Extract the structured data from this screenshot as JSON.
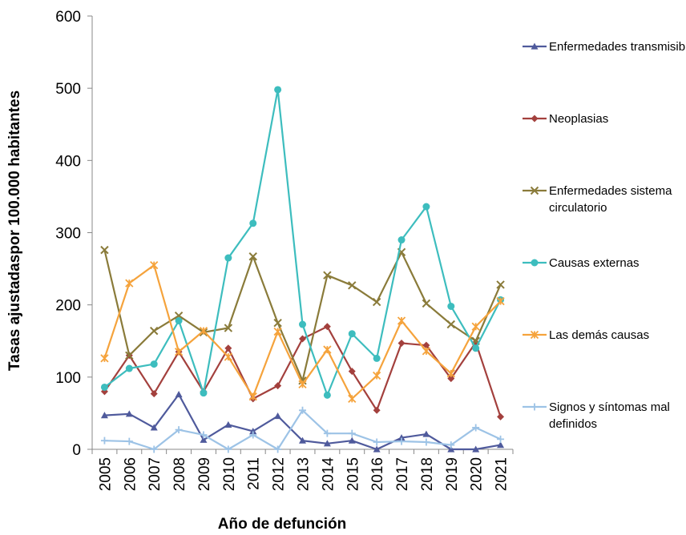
{
  "chart_data": {
    "type": "line",
    "xlabel": "Año de defunción",
    "ylabel": "Tasas ajustadaspor 100.000 habitantes",
    "ylim": [
      0,
      600
    ],
    "yticks": [
      0,
      100,
      200,
      300,
      400,
      500,
      600
    ],
    "grid": false,
    "legend_position": "right",
    "categories": [
      "2005",
      "2006",
      "2007",
      "2008",
      "2009",
      "2010",
      "2011",
      "2012",
      "2013",
      "2014",
      "2015",
      "2016",
      "2017",
      "2018",
      "2019",
      "2020",
      "2021"
    ],
    "series": [
      {
        "name": "Enfermedades transmisibles",
        "legend_lines": [
          "Enfermedades transmisibles"
        ],
        "color": "#4F5A9C",
        "marker": "triangle",
        "values": [
          47,
          49,
          30,
          76,
          13,
          34,
          25,
          46,
          12,
          8,
          12,
          0,
          16,
          21,
          0,
          0,
          6
        ]
      },
      {
        "name": "Neoplasias",
        "legend_lines": [
          "Neoplasias"
        ],
        "color": "#A3403D",
        "marker": "diamond",
        "values": [
          80,
          130,
          77,
          135,
          80,
          140,
          70,
          88,
          153,
          170,
          108,
          54,
          147,
          144,
          98,
          148,
          45
        ]
      },
      {
        "name": "Enfermedades sistema circulatorio",
        "legend_lines": [
          "Enfermedades sistema",
          "circulatorio"
        ],
        "color": "#8A7B3A",
        "marker": "x",
        "values": [
          276,
          130,
          164,
          185,
          162,
          168,
          267,
          175,
          95,
          241,
          227,
          204,
          273,
          202,
          173,
          150,
          228
        ]
      },
      {
        "name": "Causas externas",
        "legend_lines": [
          "Causas externas"
        ],
        "color": "#3DBDBE",
        "marker": "circle",
        "values": [
          86,
          112,
          118,
          178,
          78,
          265,
          313,
          498,
          173,
          75,
          160,
          126,
          290,
          336,
          198,
          140,
          207
        ]
      },
      {
        "name": "Las demás causas",
        "legend_lines": [
          "Las demás causas"
        ],
        "color": "#F5A33C",
        "marker": "star",
        "values": [
          126,
          230,
          255,
          135,
          164,
          128,
          73,
          163,
          90,
          138,
          70,
          102,
          178,
          136,
          105,
          170,
          205
        ]
      },
      {
        "name": "Signos y síntomas mal definidos",
        "legend_lines": [
          "Signos y síntomas mal",
          "definidos"
        ],
        "color": "#9DC3E6",
        "marker": "plus",
        "values": [
          12,
          11,
          0,
          27,
          20,
          0,
          20,
          0,
          54,
          22,
          22,
          10,
          11,
          10,
          6,
          30,
          14
        ]
      }
    ]
  }
}
